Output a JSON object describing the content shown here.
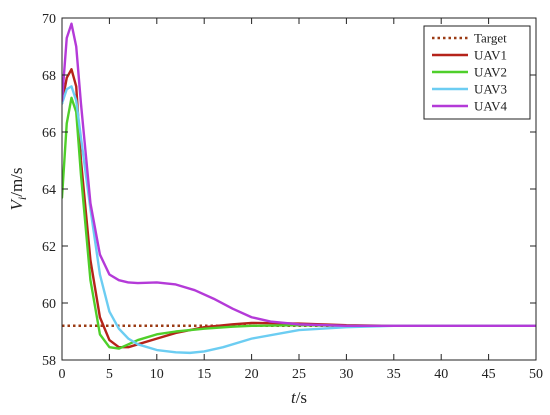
{
  "chart_data": {
    "type": "line",
    "xlabel": {
      "var": "t",
      "unit": "/s"
    },
    "ylabel": {
      "var": "V",
      "sub": "i",
      "unit": "/m/s"
    },
    "xlim": [
      0,
      50
    ],
    "ylim": [
      58,
      70
    ],
    "xticks": [
      0,
      5,
      10,
      15,
      20,
      25,
      30,
      35,
      40,
      45,
      50
    ],
    "yticks": [
      58,
      60,
      62,
      64,
      66,
      68,
      70
    ],
    "grid": false,
    "legend_position": "top-right",
    "series": [
      {
        "name": "Target",
        "color": "#9b3b14",
        "dash": "dotted",
        "x": [
          0,
          50
        ],
        "y": [
          59.2,
          59.2
        ]
      },
      {
        "name": "UAV1",
        "color": "#b5231a",
        "dash": "solid",
        "x": [
          0,
          0.5,
          1.0,
          1.5,
          2.0,
          3.0,
          4.0,
          5.0,
          6.0,
          7.0,
          8.0,
          10.0,
          12.0,
          15.0,
          18.0,
          20.0,
          25.0,
          30.0,
          35.0,
          40.0,
          50.0
        ],
        "y": [
          67.0,
          67.9,
          68.2,
          67.6,
          65.0,
          61.5,
          59.5,
          58.7,
          58.45,
          58.45,
          58.55,
          58.75,
          58.95,
          59.15,
          59.25,
          59.3,
          59.28,
          59.22,
          59.2,
          59.2,
          59.2
        ]
      },
      {
        "name": "UAV2",
        "color": "#4fcf2a",
        "dash": "solid",
        "x": [
          0,
          0.5,
          1.0,
          1.5,
          2.0,
          3.0,
          4.0,
          5.0,
          6.0,
          7.0,
          8.0,
          10.0,
          12.0,
          15.0,
          18.0,
          20.0,
          25.0,
          30.0,
          35.0,
          40.0,
          50.0
        ],
        "y": [
          63.7,
          66.3,
          67.2,
          66.7,
          64.5,
          60.8,
          58.9,
          58.45,
          58.4,
          58.55,
          58.7,
          58.9,
          59.0,
          59.1,
          59.17,
          59.2,
          59.22,
          59.2,
          59.2,
          59.2,
          59.2
        ]
      },
      {
        "name": "UAV3",
        "color": "#6ccdf2",
        "dash": "solid",
        "x": [
          0,
          0.5,
          1.0,
          1.5,
          2.0,
          3.0,
          4.0,
          5.0,
          6.0,
          7.0,
          8.0,
          10.0,
          12.0,
          13.5,
          15.0,
          17.0,
          20.0,
          25.0,
          30.0,
          35.0,
          50.0
        ],
        "y": [
          67.0,
          67.5,
          67.6,
          67.1,
          65.8,
          63.3,
          61.0,
          59.7,
          59.1,
          58.75,
          58.55,
          58.35,
          58.27,
          58.25,
          58.3,
          58.45,
          58.75,
          59.05,
          59.15,
          59.2,
          59.2
        ]
      },
      {
        "name": "UAV4",
        "color": "#b43ad8",
        "dash": "solid",
        "x": [
          0,
          0.5,
          1.0,
          1.5,
          2.0,
          3.0,
          4.0,
          5.0,
          6.0,
          7.0,
          8.0,
          10.0,
          12.0,
          14.0,
          16.0,
          18.0,
          20.0,
          22.0,
          25.0,
          30.0,
          35.0,
          50.0
        ],
        "y": [
          67.1,
          69.3,
          69.8,
          69.0,
          67.0,
          63.5,
          61.7,
          61.0,
          60.8,
          60.72,
          60.7,
          60.72,
          60.65,
          60.45,
          60.15,
          59.8,
          59.5,
          59.35,
          59.25,
          59.2,
          59.2,
          59.2
        ]
      }
    ]
  }
}
